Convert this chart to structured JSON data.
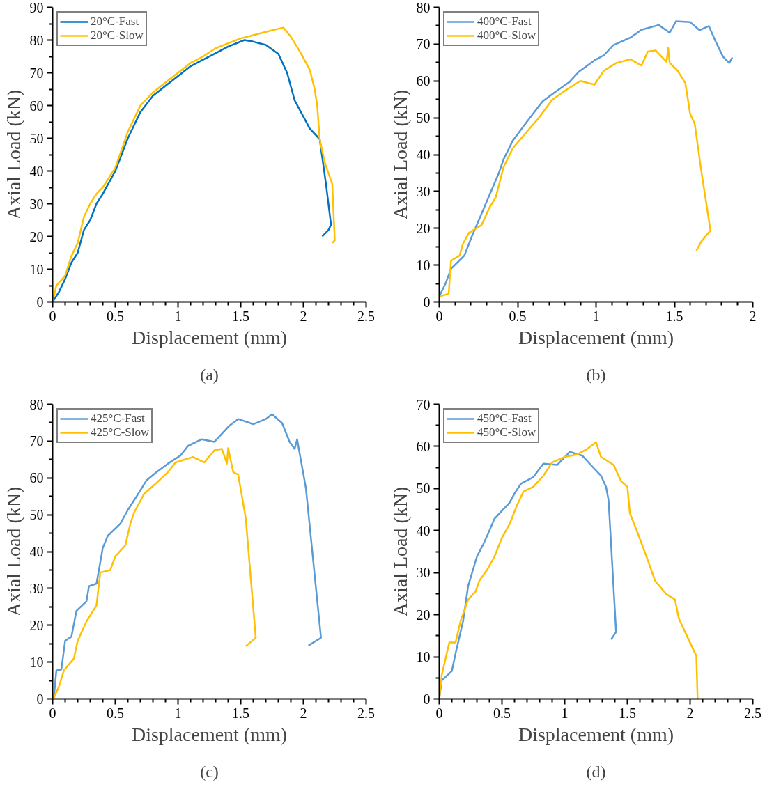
{
  "chart_data": [
    {
      "type": "line",
      "annotations": [
        "(a)"
      ],
      "xlabel": "Displacement (mm)",
      "ylabel": "Axial Load (kN)",
      "xlim": [
        0,
        2.5
      ],
      "xticks": [
        0,
        0.5,
        1,
        1.5,
        2,
        2.5
      ],
      "ylim": [
        0,
        90
      ],
      "yticks": [
        0,
        10,
        20,
        30,
        40,
        50,
        60,
        70,
        80,
        90
      ],
      "grid": false,
      "legend": "top left",
      "marker": "none",
      "line_style": "solid",
      "series": [
        {
          "name": "20°C-Fast",
          "color": "#0070c0",
          "x": [
            0,
            0.05,
            0.1,
            0.15,
            0.2,
            0.25,
            0.3,
            0.35,
            0.4,
            0.5,
            0.6,
            0.7,
            0.8,
            0.9,
            1.0,
            1.1,
            1.2,
            1.3,
            1.4,
            1.53,
            1.6,
            1.7,
            1.8,
            1.87,
            1.93,
            2.05,
            2.13,
            2.18,
            2.22,
            2.2,
            2.15
          ],
          "values": [
            0,
            3,
            7,
            12,
            15,
            22,
            25,
            30,
            33,
            40,
            50,
            58,
            63,
            66,
            69,
            72,
            74,
            76,
            78,
            80,
            79.5,
            78.5,
            75.8,
            70,
            61.6,
            53,
            49.7,
            36,
            23.6,
            22,
            20
          ]
        },
        {
          "name": "20°C-Slow",
          "color": "#ffc000",
          "x": [
            0,
            0.03,
            0.1,
            0.15,
            0.2,
            0.25,
            0.3,
            0.35,
            0.4,
            0.5,
            0.6,
            0.7,
            0.8,
            0.9,
            1.0,
            1.1,
            1.2,
            1.3,
            1.4,
            1.5,
            1.6,
            1.7,
            1.84,
            1.9,
            1.98,
            2.05,
            2.09,
            2.11,
            2.13,
            2.17,
            2.23,
            2.25,
            2.23
          ],
          "values": [
            0,
            5,
            8,
            14,
            18,
            26,
            30,
            33,
            35,
            41,
            52,
            60,
            64,
            67,
            70,
            73,
            75,
            77.5,
            79,
            80.5,
            81.5,
            82.5,
            83.8,
            81,
            76,
            71,
            65,
            60,
            49.7,
            42.6,
            36,
            18.8,
            18
          ]
        }
      ]
    },
    {
      "type": "line",
      "annotations": [
        "(b)"
      ],
      "xlabel": "Displacement (mm)",
      "ylabel": "Axial Load (kN)",
      "xlim": [
        0,
        2
      ],
      "xticks": [
        0,
        0.5,
        1,
        1.5,
        2
      ],
      "ylim": [
        0,
        80
      ],
      "yticks": [
        0,
        10,
        20,
        30,
        40,
        50,
        60,
        70,
        80
      ],
      "grid": false,
      "legend": "top left",
      "marker": "none",
      "line_style": "solid",
      "series": [
        {
          "name": "400°C-Fast",
          "color": "#5b9bd5",
          "x": [
            0,
            0.04,
            0.075,
            0.16,
            0.21,
            0.25,
            0.38,
            0.41,
            0.47,
            0.56,
            0.66,
            0.74,
            0.83,
            0.89,
            0.99,
            1.05,
            1.11,
            1.22,
            1.29,
            1.4,
            1.47,
            1.51,
            1.6,
            1.66,
            1.72,
            1.76,
            1.81,
            1.85,
            1.87
          ],
          "values": [
            1.5,
            5,
            9,
            12.6,
            18,
            22,
            35,
            38.7,
            43.9,
            49,
            54.5,
            57,
            59.7,
            62.5,
            65.6,
            67,
            69.7,
            71.8,
            73.9,
            75.2,
            73.1,
            76.2,
            76,
            73.8,
            74.9,
            71,
            66.6,
            64.9,
            66.4
          ]
        },
        {
          "name": "400°C-Slow",
          "color": "#ffc000",
          "x": [
            0,
            0.06,
            0.075,
            0.13,
            0.15,
            0.19,
            0.27,
            0.32,
            0.36,
            0.41,
            0.47,
            0.56,
            0.63,
            0.72,
            0.81,
            0.9,
            0.99,
            1.05,
            1.13,
            1.22,
            1.29,
            1.33,
            1.38,
            1.45,
            1.46,
            1.47,
            1.52,
            1.57,
            1.6,
            1.63,
            1.67,
            1.73,
            1.67,
            1.64
          ],
          "values": [
            1.5,
            2.2,
            11.2,
            12.6,
            15.7,
            18.8,
            20.9,
            25.6,
            28.4,
            36.6,
            41.8,
            46.3,
            49.7,
            54.9,
            57.6,
            60,
            59,
            62.8,
            64.9,
            65.9,
            64.2,
            68,
            68.3,
            65.2,
            69,
            64.9,
            62.8,
            59.4,
            51.1,
            48.3,
            36,
            19.4,
            16.3,
            13.9
          ]
        }
      ]
    },
    {
      "type": "line",
      "annotations": [
        "(c)"
      ],
      "xlabel": "Displacement (mm)",
      "ylabel": "Axial Load (kN)",
      "xlim": [
        0,
        2.5
      ],
      "xticks": [
        0,
        0.5,
        1,
        1.5,
        2,
        2.5
      ],
      "ylim": [
        0,
        80
      ],
      "yticks": [
        0,
        10,
        20,
        30,
        40,
        50,
        60,
        70,
        80
      ],
      "grid": false,
      "legend": "top left",
      "marker": "none",
      "line_style": "solid",
      "series": [
        {
          "name": "425°C-Fast",
          "color": "#5b9bd5",
          "x": [
            0.01,
            0.03,
            0.07,
            0.1,
            0.15,
            0.19,
            0.27,
            0.29,
            0.35,
            0.4,
            0.44,
            0.54,
            0.6,
            0.67,
            0.75,
            0.83,
            0.92,
            1.02,
            1.08,
            1.19,
            1.29,
            1.41,
            1.48,
            1.6,
            1.7,
            1.75,
            1.83,
            1.89,
            1.93,
            1.95,
            2.02,
            2.14,
            2.04
          ],
          "values": [
            0.3,
            7.7,
            8,
            15.8,
            16.9,
            23.9,
            26.5,
            30.6,
            31.3,
            41,
            44.3,
            47.6,
            51.3,
            55,
            59.4,
            61.6,
            63.9,
            66.1,
            68.7,
            70.5,
            69.8,
            74.2,
            76,
            74.6,
            76,
            77.3,
            74.9,
            69.8,
            67.9,
            70.5,
            57.2,
            16.6,
            14.5
          ]
        },
        {
          "name": "425°C-Slow",
          "color": "#ffc000",
          "x": [
            0.01,
            0.05,
            0.09,
            0.17,
            0.2,
            0.27,
            0.35,
            0.38,
            0.46,
            0.5,
            0.58,
            0.62,
            0.65,
            0.73,
            0.83,
            0.92,
            0.98,
            1.12,
            1.21,
            1.29,
            1.35,
            1.39,
            1.4,
            1.44,
            1.48,
            1.54,
            1.62,
            1.54
          ],
          "values": [
            0.3,
            3.3,
            7.7,
            11,
            15.8,
            21,
            25.4,
            34.3,
            35,
            38.7,
            41.7,
            47.6,
            50.6,
            55.7,
            58.7,
            61.6,
            64.2,
            65.7,
            64.2,
            67.5,
            67.9,
            63.9,
            68.1,
            61.6,
            60.9,
            49.1,
            16.6,
            14.3
          ]
        }
      ]
    },
    {
      "type": "line",
      "annotations": [
        "(d)"
      ],
      "xlabel": "Displacement (mm)",
      "ylabel": "Axial Load (kN)",
      "xlim": [
        0,
        2.5
      ],
      "xticks": [
        0,
        0.5,
        1,
        1.5,
        2,
        2.5
      ],
      "ylim": [
        0,
        70
      ],
      "yticks": [
        0,
        10,
        20,
        30,
        40,
        50,
        60,
        70
      ],
      "grid": false,
      "legend": "top left",
      "marker": "none",
      "line_style": "solid",
      "series": [
        {
          "name": "450°C-Fast",
          "color": "#5b9bd5",
          "x": [
            0,
            0.02,
            0.1,
            0.13,
            0.19,
            0.23,
            0.3,
            0.35,
            0.39,
            0.44,
            0.5,
            0.56,
            0.6,
            0.65,
            0.75,
            0.83,
            0.94,
            1.04,
            1.14,
            1.23,
            1.29,
            1.33,
            1.35,
            1.41,
            1.37
          ],
          "values": [
            0,
            4.4,
            6.6,
            10.8,
            18.5,
            26.8,
            33.8,
            36.7,
            39.3,
            42.8,
            44.7,
            46.6,
            48.8,
            51.1,
            52.7,
            55.9,
            55.6,
            58.7,
            57.8,
            54.9,
            53,
            50.4,
            47.2,
            15.9,
            14.1
          ]
        },
        {
          "name": "450°C-Slow",
          "color": "#ffc000",
          "x": [
            0,
            0.02,
            0.08,
            0.13,
            0.17,
            0.23,
            0.29,
            0.32,
            0.38,
            0.44,
            0.5,
            0.56,
            0.62,
            0.67,
            0.75,
            0.83,
            0.9,
            1.0,
            1.1,
            1.18,
            1.25,
            1.29,
            1.39,
            1.45,
            1.5,
            1.52,
            1.58,
            1.66,
            1.72,
            1.81,
            1.88,
            1.91,
            1.99,
            2.05,
            2.06
          ],
          "values": [
            0,
            5.7,
            13.4,
            13.4,
            18.5,
            23.6,
            25.5,
            28.1,
            30.6,
            33.8,
            38.3,
            41.5,
            46,
            49.2,
            50.4,
            53,
            56.2,
            57.5,
            58.1,
            59.4,
            61,
            57.5,
            55.6,
            51.7,
            50.4,
            44.1,
            39.6,
            33.2,
            28.1,
            24.9,
            23.6,
            19.1,
            14,
            10.2,
            0
          ]
        }
      ]
    }
  ]
}
